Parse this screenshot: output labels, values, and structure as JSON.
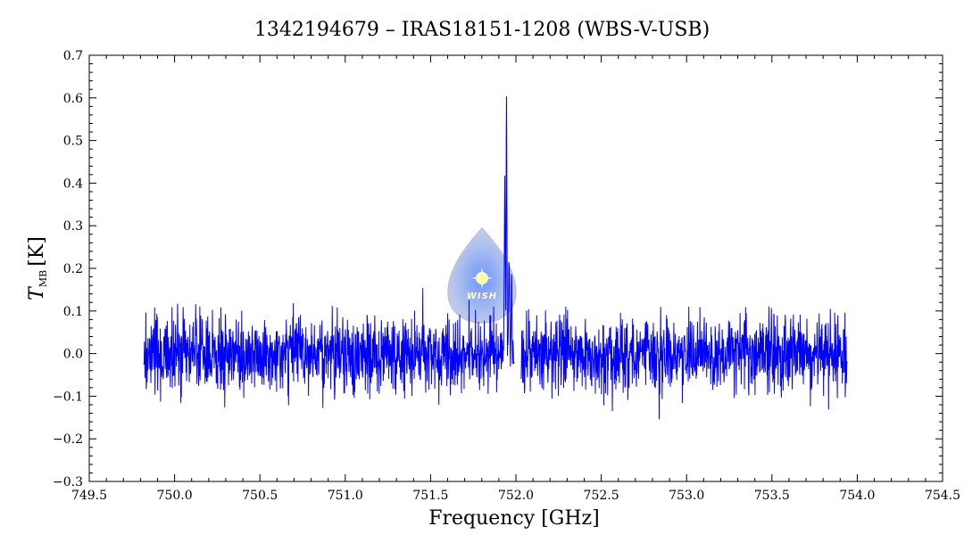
{
  "chart_data": {
    "type": "line",
    "title": "1342194679 – IRAS18151-1208 (WBS-V-USB)",
    "xlabel": "Frequency [GHz]",
    "ylabel": {
      "main": "T",
      "sub": "MB",
      "unit": "[K]"
    },
    "xlim": [
      749.5,
      754.5
    ],
    "ylim": [
      -0.3,
      0.7
    ],
    "x_ticks": [
      "749.5",
      "750.0",
      "750.5",
      "751.0",
      "751.5",
      "752.0",
      "752.5",
      "753.0",
      "753.5",
      "754.0",
      "754.5"
    ],
    "y_ticks": [
      "−0.3",
      "−0.2",
      "−0.1",
      "0.0",
      "0.1",
      "0.2",
      "0.3",
      "0.4",
      "0.5",
      "0.6",
      "0.7"
    ],
    "grid": false,
    "legend": "none",
    "series": [
      {
        "color": "#0000ff",
        "x_range": [
          749.82,
          753.94
        ],
        "noise_rms": 0.045,
        "baseline": 0.0,
        "features": [
          {
            "x": 751.935,
            "peak": 0.39,
            "width": 0.004
          },
          {
            "x": 751.945,
            "peak": 0.62,
            "width": 0.003
          },
          {
            "x": 751.96,
            "peak": 0.23,
            "width": 0.004
          },
          {
            "x": 751.975,
            "peak": 0.2,
            "width": 0.003
          }
        ],
        "gap": [
          751.99,
          752.03
        ]
      }
    ]
  },
  "logo": {
    "text": "WISH",
    "icon": "wish-drop-logo"
  }
}
